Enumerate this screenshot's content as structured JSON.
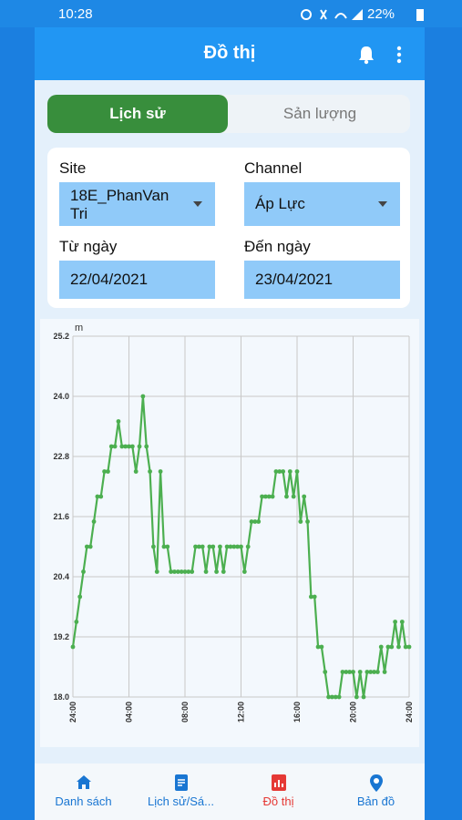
{
  "status_bar": {
    "time": "10:28",
    "battery": "22%"
  },
  "app_bar": {
    "title": "Đồ thị"
  },
  "tabs": [
    {
      "label": "Lịch sử",
      "active": true
    },
    {
      "label": "Sản lượng",
      "active": false
    }
  ],
  "form": {
    "site_label": "Site",
    "site_value": "18E_PhanVan Tri",
    "channel_label": "Channel",
    "channel_value": "Áp Lực",
    "from_label": "Từ ngày",
    "from_value": "22/04/2021",
    "to_label": "Đến ngày",
    "to_value": "23/04/2021"
  },
  "chart_data": {
    "type": "line",
    "y_label": "m",
    "color": "#4caf50",
    "grid": true,
    "x": [
      0,
      0.25,
      0.5,
      0.75,
      1,
      1.25,
      1.5,
      1.75,
      2,
      2.25,
      2.5,
      2.75,
      3,
      3.25,
      3.5,
      3.75,
      4,
      4.25,
      4.5,
      4.75,
      5,
      5.25,
      5.5,
      5.75,
      6,
      6.25,
      6.5,
      6.75,
      7,
      7.25,
      7.5,
      7.75,
      8,
      8.25,
      8.5,
      8.75,
      9,
      9.25,
      9.5,
      9.75,
      10,
      10.25,
      10.5,
      10.75,
      11,
      11.25,
      11.5,
      11.75,
      12,
      12.25,
      12.5,
      12.75,
      13,
      13.25,
      13.5,
      13.75,
      14,
      14.25,
      14.5,
      14.75,
      15,
      15.25,
      15.5,
      15.75,
      16,
      16.25,
      16.5,
      16.75,
      17,
      17.25,
      17.5,
      17.75,
      18,
      18.25,
      18.5,
      18.75,
      19,
      19.25,
      19.5,
      19.75,
      20,
      20.25,
      20.5,
      20.75,
      21,
      21.25,
      21.5,
      21.75,
      22,
      22.25,
      22.5,
      22.75,
      23,
      23.25,
      23.5,
      23.75,
      24
    ],
    "values": [
      19.0,
      19.5,
      20.0,
      20.5,
      21.0,
      21.0,
      21.5,
      22.0,
      22.0,
      22.5,
      22.5,
      23.0,
      23.0,
      23.5,
      23.0,
      23.0,
      23.0,
      23.0,
      22.5,
      23.0,
      24.0,
      23.0,
      22.5,
      21.0,
      20.5,
      22.5,
      21.0,
      21.0,
      20.5,
      20.5,
      20.5,
      20.5,
      20.5,
      20.5,
      20.5,
      21.0,
      21.0,
      21.0,
      20.5,
      21.0,
      21.0,
      20.5,
      21.0,
      20.5,
      21.0,
      21.0,
      21.0,
      21.0,
      21.0,
      20.5,
      21.0,
      21.5,
      21.5,
      21.5,
      22.0,
      22.0,
      22.0,
      22.0,
      22.5,
      22.5,
      22.5,
      22.0,
      22.5,
      22.0,
      22.5,
      21.5,
      22.0,
      21.5,
      20.0,
      20.0,
      19.0,
      19.0,
      18.5,
      18.0,
      18.0,
      18.0,
      18.0,
      18.5,
      18.5,
      18.5,
      18.5,
      18.0,
      18.5,
      18.0,
      18.5,
      18.5,
      18.5,
      18.5,
      19.0,
      18.5,
      19.0,
      19.0,
      19.5,
      19.0,
      19.5,
      19.0,
      19.0
    ],
    "xlim": [
      0,
      24
    ],
    "ylim": [
      18,
      25.2
    ],
    "xticks": [
      {
        "value": 0,
        "label": "24:00"
      },
      {
        "value": 4,
        "label": "04:00"
      },
      {
        "value": 8,
        "label": "08:00"
      },
      {
        "value": 12,
        "label": "12:00"
      },
      {
        "value": 16,
        "label": "16:00"
      },
      {
        "value": 20,
        "label": "20:00"
      },
      {
        "value": 24,
        "label": "24:00"
      }
    ],
    "yticks": [
      {
        "value": 18,
        "label": "18.0"
      },
      {
        "value": 19.2,
        "label": "19.2"
      },
      {
        "value": 20.4,
        "label": "20.4"
      },
      {
        "value": 21.6,
        "label": "21.6"
      },
      {
        "value": 22.8,
        "label": "22.8"
      },
      {
        "value": 24,
        "label": "24.0"
      },
      {
        "value": 25.2,
        "label": "25.2"
      }
    ]
  },
  "bottom_nav": [
    {
      "label": "Danh sách",
      "active": false
    },
    {
      "label": "Lịch sử/Sá...",
      "active": false
    },
    {
      "label": "Đồ thị",
      "active": true
    },
    {
      "label": "Bản đồ",
      "active": false
    }
  ]
}
